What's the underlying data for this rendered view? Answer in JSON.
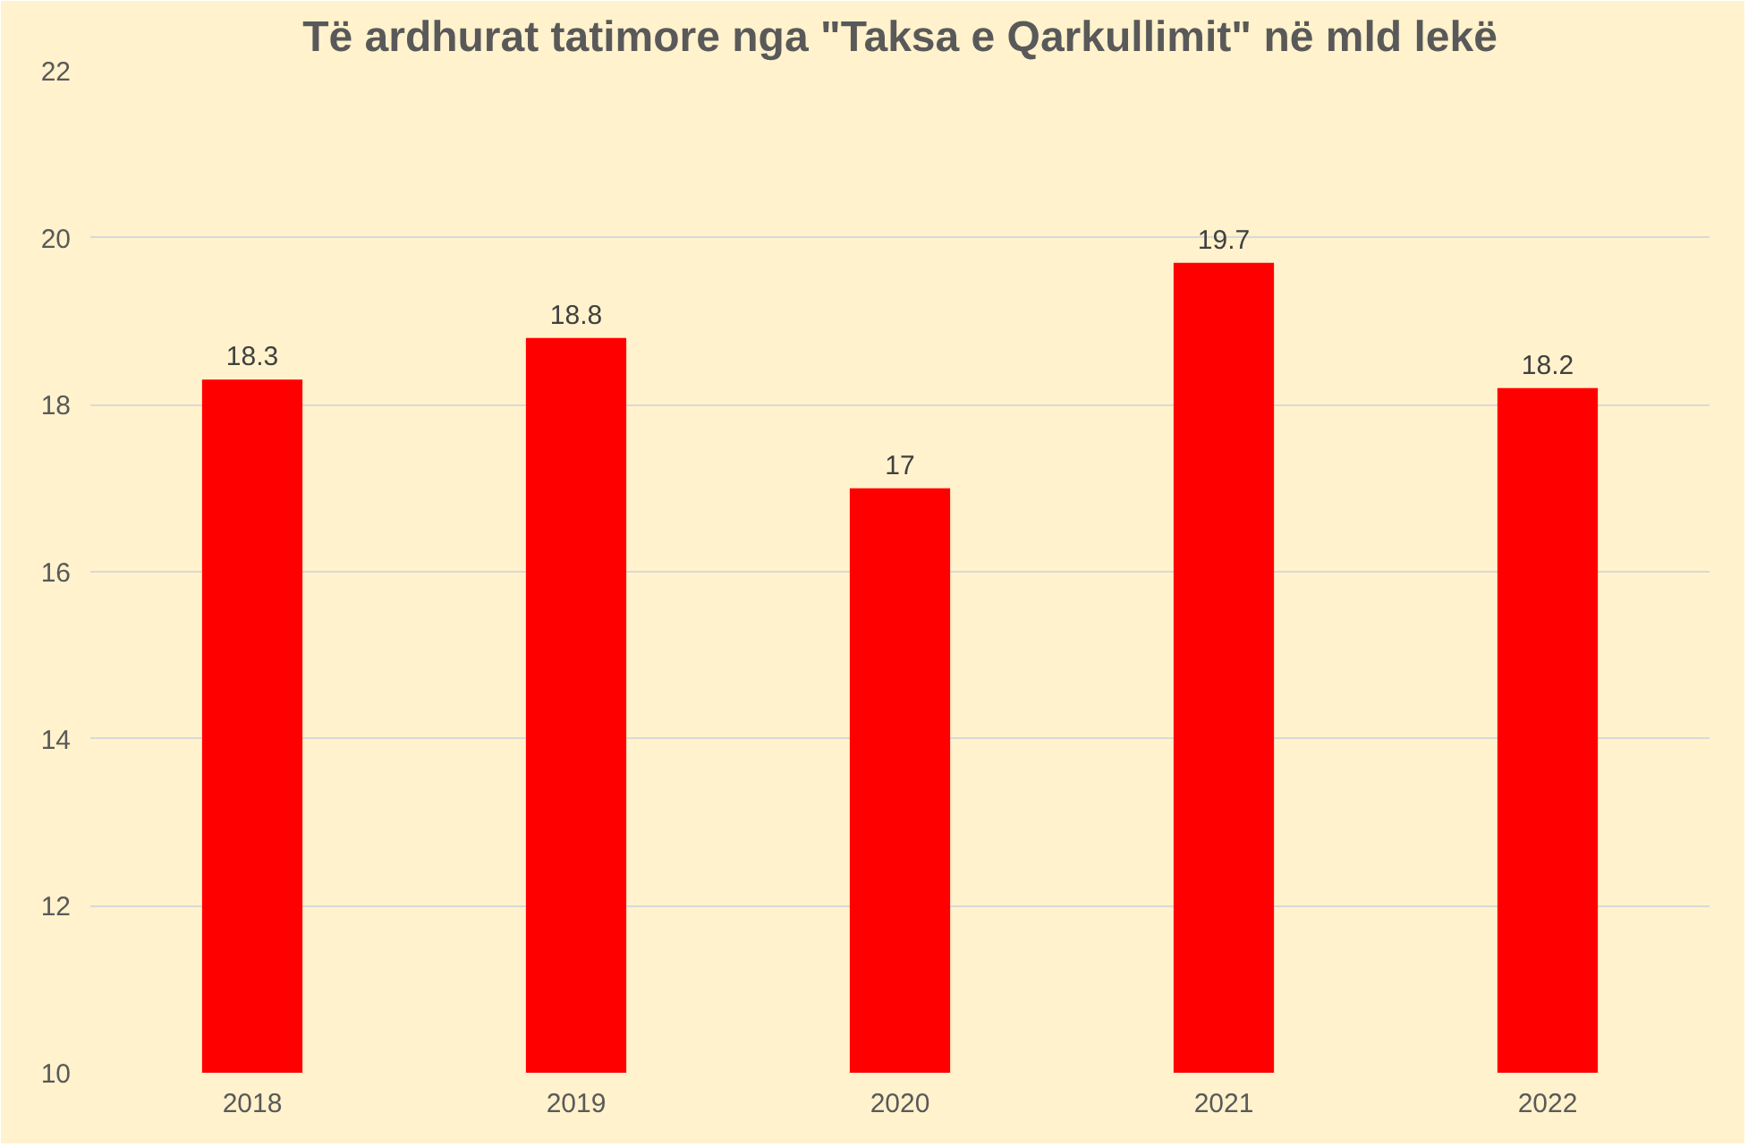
{
  "chart_data": {
    "type": "bar",
    "title": "Të ardhurat tatimore nga \"Taksa e Qarkullimit\" në mld lekë",
    "categories": [
      "2018",
      "2019",
      "2020",
      "2021",
      "2022"
    ],
    "values": [
      18.3,
      18.8,
      17,
      19.7,
      18.2
    ],
    "color": "#ff0000",
    "ylim": [
      10,
      22
    ],
    "yticks": [
      10,
      12,
      14,
      16,
      18,
      20,
      22
    ],
    "grid": "y",
    "data_labels": true
  }
}
